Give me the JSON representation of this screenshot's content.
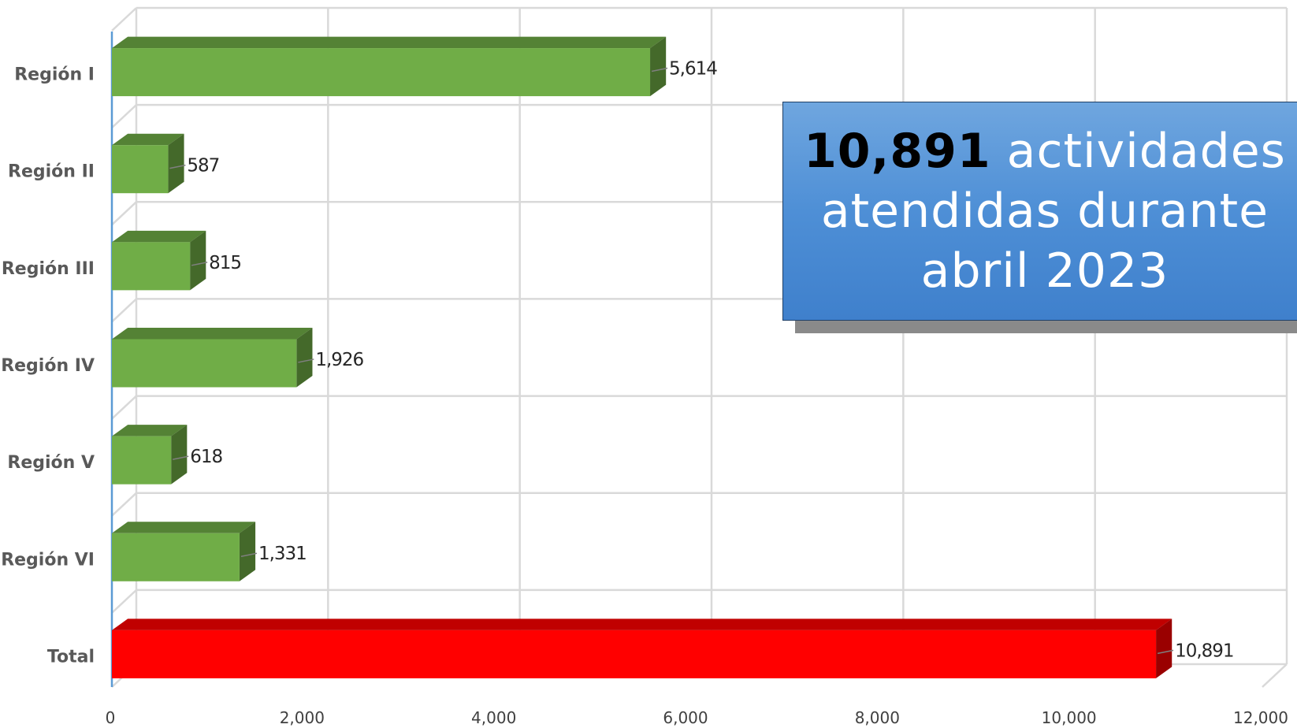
{
  "chart_data": {
    "type": "bar",
    "orientation": "horizontal",
    "categories": [
      "Región I",
      "Región II",
      "Región III",
      "Región IV",
      "Región V",
      "Región VI",
      "Total"
    ],
    "values": [
      5614,
      587,
      815,
      1926,
      618,
      1331,
      10891
    ],
    "value_labels": [
      "5,614",
      "587",
      "815",
      "1,926",
      "618",
      "1,331",
      "10,891"
    ],
    "xlim": [
      0,
      12000
    ],
    "x_ticks": [
      0,
      2000,
      4000,
      6000,
      8000,
      10000,
      12000
    ],
    "x_tick_labels": [
      "0",
      "2,000",
      "4,000",
      "6,000",
      "8,000",
      "10,000",
      "12,000"
    ],
    "grid": true,
    "style": "3d",
    "bar_colors": {
      "front": [
        "#70ad47",
        "#70ad47",
        "#70ad47",
        "#70ad47",
        "#70ad47",
        "#70ad47",
        "#ff0000"
      ],
      "top": [
        "#548235",
        "#548235",
        "#548235",
        "#548235",
        "#548235",
        "#548235",
        "#c00000"
      ],
      "side": [
        "#44692a",
        "#44692a",
        "#44692a",
        "#44692a",
        "#44692a",
        "#44692a",
        "#9a0000"
      ]
    }
  },
  "callout": {
    "number": "10,891",
    "line1_rest": " actividades",
    "line2": "atendidas durante",
    "line3": "abril 2023"
  }
}
